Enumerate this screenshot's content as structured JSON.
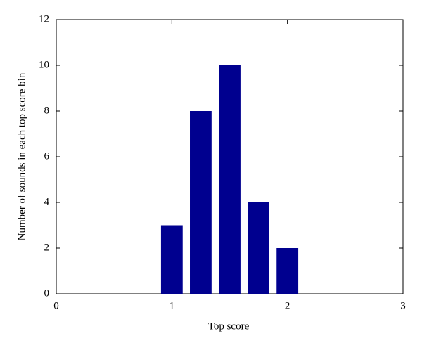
{
  "chart_data": {
    "type": "bar",
    "xlabel": "Top score",
    "ylabel": "Number of sounds in each top score bin",
    "x": [
      1,
      1.25,
      1.5,
      1.75,
      2
    ],
    "values": [
      3,
      8,
      10,
      4,
      2
    ],
    "color": "#00008f",
    "xlim": [
      0,
      3
    ],
    "xticks": [
      0,
      1,
      2,
      3
    ],
    "ylim": [
      0,
      12
    ],
    "yticks": [
      0,
      2,
      4,
      6,
      8,
      10,
      12
    ],
    "grid": false
  }
}
